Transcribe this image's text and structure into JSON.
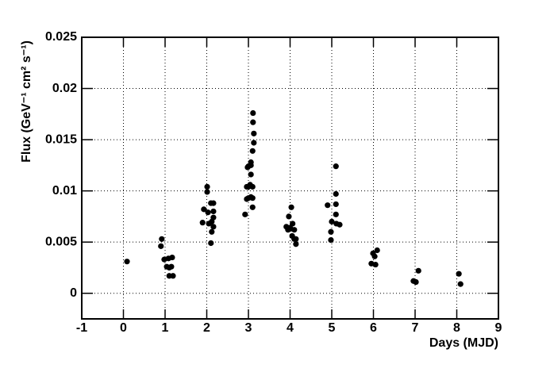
{
  "chart_data": {
    "type": "scatter",
    "x_label": "Days (MJD)",
    "y_label": "Flux (GeV⁻¹ cm² s⁻¹)",
    "color": "#000000",
    "grid": true,
    "xlim": [
      -1,
      9
    ],
    "xticks": [
      -1,
      0,
      1,
      2,
      3,
      4,
      5,
      6,
      7,
      8,
      9
    ],
    "ylim": [
      -0.0025,
      0.025
    ],
    "yticks": [
      0,
      0.005,
      0.01,
      0.015,
      0.02,
      0.025
    ],
    "x": [
      0.086,
      0.92,
      0.9,
      0.98,
      1.08,
      1.17,
      1.1,
      1.04,
      1.15,
      1.1,
      1.19,
      2.01,
      2.01,
      1.93,
      1.9,
      2.03,
      2.1,
      2.16,
      2.16,
      2.16,
      2.12,
      2.16,
      2.12,
      2.1,
      2.05,
      3.11,
      3.11,
      3.13,
      3.13,
      3.1,
      3.06,
      3.0,
      3.06,
      3.06,
      3.04,
      3.0,
      2.96,
      3.1,
      3.06,
      3.0,
      2.96,
      3.1,
      3.1,
      2.92,
      2.98,
      4.03,
      3.97,
      4.06,
      3.91,
      3.95,
      4.01,
      4.1,
      4.05,
      4.1,
      4.14,
      4.14,
      4.0,
      5.1,
      5.1,
      5.1,
      4.9,
      5.1,
      5.0,
      5.11,
      5.19,
      4.98,
      4.98,
      5.99,
      6.09,
      6.03,
      5.95,
      6.05,
      6.96,
      7.02,
      7.08,
      8.05,
      8.09
    ],
    "values": [
      0.0031,
      0.0053,
      0.0046,
      0.0033,
      0.0034,
      0.0035,
      0.0025,
      0.0026,
      0.0026,
      0.0017,
      0.0017,
      0.0104,
      0.0099,
      0.0082,
      0.0069,
      0.0079,
      0.0088,
      0.0088,
      0.008,
      0.0074,
      0.007,
      0.0065,
      0.006,
      0.0049,
      0.0068,
      0.0176,
      0.0167,
      0.0156,
      0.0147,
      0.0139,
      0.0128,
      0.0124,
      0.0125,
      0.0116,
      0.0106,
      0.0104,
      0.0104,
      0.0104,
      0.0094,
      0.0093,
      0.0092,
      0.0093,
      0.0084,
      0.0077,
      0.0123,
      0.0084,
      0.0075,
      0.0068,
      0.0065,
      0.0062,
      0.0063,
      0.0062,
      0.0056,
      0.0053,
      0.0048,
      0.0053,
      0.0064,
      0.0124,
      0.0097,
      0.0087,
      0.0086,
      0.0077,
      0.007,
      0.0068,
      0.0067,
      0.006,
      0.0052,
      0.0039,
      0.0042,
      0.0036,
      0.0029,
      0.0028,
      0.0012,
      0.0011,
      0.0022,
      0.0019,
      0.0009
    ]
  }
}
